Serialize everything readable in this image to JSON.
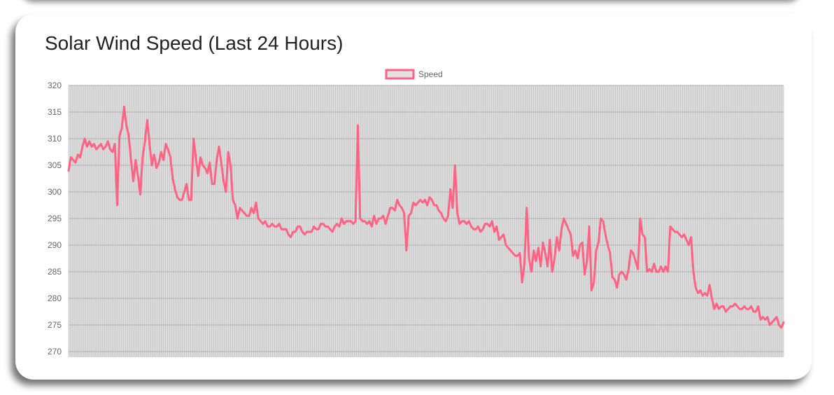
{
  "page": {
    "title": "Solar Wind Speed (Last 24 Hours)"
  },
  "colors": {
    "line": "#ff6384",
    "plot_background": "#dddddd",
    "grid": "#b8b8b8",
    "legend_box_fill": "#e2e2e2"
  },
  "chart_data": {
    "type": "line",
    "title": "Solar Wind Speed (Last 24 Hours)",
    "legend_position": "top-center",
    "grid": true,
    "xlabel": "",
    "ylabel": "",
    "ylim": [
      270,
      320
    ],
    "y_ticks": [
      320,
      315,
      310,
      305,
      300,
      295,
      290,
      285,
      280,
      275,
      270
    ],
    "series": [
      {
        "name": "Speed",
        "values": [
          304.0,
          306.5,
          306.0,
          305.5,
          307.0,
          306.5,
          308.5,
          310.0,
          308.5,
          309.5,
          308.5,
          309.0,
          308.0,
          308.5,
          309.0,
          308.0,
          308.5,
          309.5,
          308.0,
          307.5,
          309.0,
          297.5,
          310.5,
          312.0,
          316.0,
          312.5,
          310.5,
          306.0,
          302.0,
          306.0,
          303.0,
          299.5,
          306.5,
          309.5,
          313.5,
          309.0,
          305.0,
          307.0,
          304.5,
          305.5,
          307.5,
          306.0,
          309.0,
          308.0,
          306.5,
          302.5,
          300.5,
          299.0,
          298.5,
          298.5,
          300.0,
          301.5,
          298.5,
          298.5,
          310.0,
          306.5,
          303.0,
          306.5,
          305.0,
          304.5,
          303.5,
          305.5,
          301.5,
          301.5,
          306.0,
          308.5,
          305.5,
          302.0,
          300.0,
          307.5,
          305.0,
          298.5,
          297.5,
          295.0,
          297.0,
          296.5,
          296.0,
          295.5,
          295.5,
          297.0,
          296.0,
          298.0,
          295.0,
          294.5,
          294.0,
          294.5,
          293.5,
          293.5,
          294.0,
          293.5,
          293.5,
          294.0,
          293.0,
          293.0,
          293.0,
          292.0,
          291.5,
          292.5,
          292.5,
          293.5,
          293.5,
          292.5,
          292.0,
          292.5,
          292.5,
          292.5,
          293.5,
          293.0,
          293.0,
          294.0,
          294.0,
          293.5,
          293.5,
          293.0,
          292.5,
          293.5,
          294.0,
          293.5,
          295.0,
          294.0,
          294.5,
          294.5,
          294.5,
          294.0,
          294.5,
          312.5,
          295.0,
          294.5,
          294.5,
          294.0,
          294.5,
          293.5,
          295.5,
          294.0,
          295.0,
          295.0,
          295.5,
          294.0,
          295.5,
          297.0,
          297.0,
          296.5,
          298.5,
          297.5,
          297.0,
          296.0,
          289.0,
          295.5,
          296.0,
          298.0,
          297.5,
          298.0,
          298.5,
          298.0,
          298.5,
          297.5,
          299.0,
          298.5,
          297.5,
          297.5,
          296.5,
          296.0,
          295.0,
          294.5,
          295.5,
          300.5,
          297.0,
          305.0,
          296.0,
          294.0,
          294.5,
          294.5,
          294.0,
          294.5,
          293.5,
          293.0,
          293.0,
          293.5,
          292.5,
          293.0,
          294.0,
          294.0,
          293.5,
          294.5,
          292.5,
          293.5,
          291.0,
          291.5,
          292.0,
          290.0,
          289.5,
          289.0,
          288.5,
          288.0,
          288.0,
          288.5,
          283.0,
          286.5,
          297.0,
          287.5,
          285.0,
          289.0,
          287.0,
          289.5,
          286.0,
          290.5,
          288.5,
          286.0,
          291.0,
          285.0,
          287.5,
          291.5,
          289.0,
          293.0,
          295.0,
          294.0,
          293.0,
          292.0,
          288.0,
          289.0,
          287.5,
          290.0,
          290.5,
          284.5,
          287.0,
          293.5,
          281.5,
          283.0,
          289.0,
          290.5,
          295.0,
          294.5,
          292.0,
          290.0,
          288.5,
          284.0,
          283.5,
          282.0,
          284.5,
          285.0,
          284.5,
          283.5,
          285.5,
          289.0,
          288.5,
          287.0,
          285.5,
          295.0,
          292.0,
          291.5,
          285.0,
          285.5,
          285.0,
          286.5,
          285.0,
          285.0,
          286.0,
          285.0,
          286.0,
          285.0,
          293.5,
          293.0,
          292.5,
          292.5,
          292.0,
          291.5,
          292.0,
          291.0,
          290.0,
          291.5,
          285.0,
          282.0,
          281.0,
          281.5,
          280.5,
          281.0,
          280.5,
          282.5,
          280.0,
          278.0,
          279.0,
          278.0,
          278.5,
          278.5,
          277.5,
          278.0,
          278.5,
          278.5,
          279.0,
          278.5,
          278.0,
          278.0,
          278.5,
          278.0,
          278.0,
          278.5,
          277.5,
          277.5,
          278.5,
          276.0,
          276.5,
          276.0,
          276.5,
          275.0,
          275.5,
          276.0,
          276.5,
          275.0,
          274.5,
          275.5
        ]
      }
    ]
  }
}
